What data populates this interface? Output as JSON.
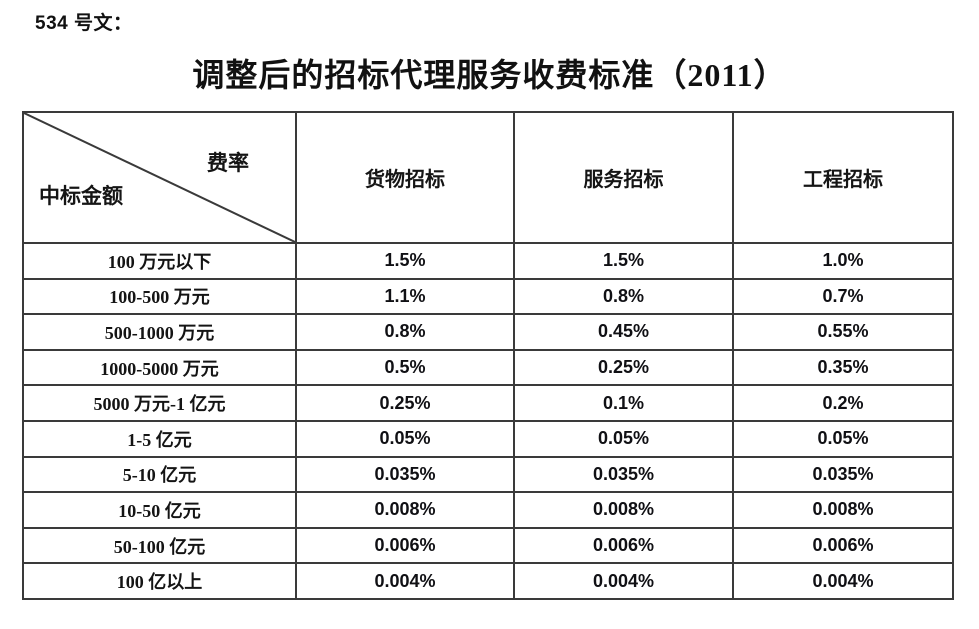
{
  "page": {
    "doc_label": "534 号文：",
    "title": "调整后的招标代理服务收费标准（2011）"
  },
  "table": {
    "corner": {
      "top_right": "费率",
      "bottom_left": "中标金额"
    },
    "columns": [
      "货物招标",
      "服务招标",
      "工程招标"
    ],
    "rows": [
      {
        "label": "100 万元以下",
        "values": [
          "1.5%",
          "1.5%",
          "1.0%"
        ]
      },
      {
        "label": "100-500 万元",
        "values": [
          "1.1%",
          "0.8%",
          "0.7%"
        ]
      },
      {
        "label": "500-1000 万元",
        "values": [
          "0.8%",
          "0.45%",
          "0.55%"
        ]
      },
      {
        "label": "1000-5000 万元",
        "values": [
          "0.5%",
          "0.25%",
          "0.35%"
        ]
      },
      {
        "label": "5000 万元-1 亿元",
        "values": [
          "0.25%",
          "0.1%",
          "0.2%"
        ]
      },
      {
        "label": "1-5 亿元",
        "values": [
          "0.05%",
          "0.05%",
          "0.05%"
        ]
      },
      {
        "label": "5-10 亿元",
        "values": [
          "0.035%",
          "0.035%",
          "0.035%"
        ]
      },
      {
        "label": "10-50 亿元",
        "values": [
          "0.008%",
          "0.008%",
          "0.008%"
        ]
      },
      {
        "label": "50-100 亿元",
        "values": [
          "0.006%",
          "0.006%",
          "0.006%"
        ]
      },
      {
        "label": "100 亿以上",
        "values": [
          "0.004%",
          "0.004%",
          "0.004%"
        ]
      }
    ]
  },
  "colors": {
    "background": "#ffffff",
    "text": "#1a1a1a",
    "border": "#3a3a3a"
  }
}
